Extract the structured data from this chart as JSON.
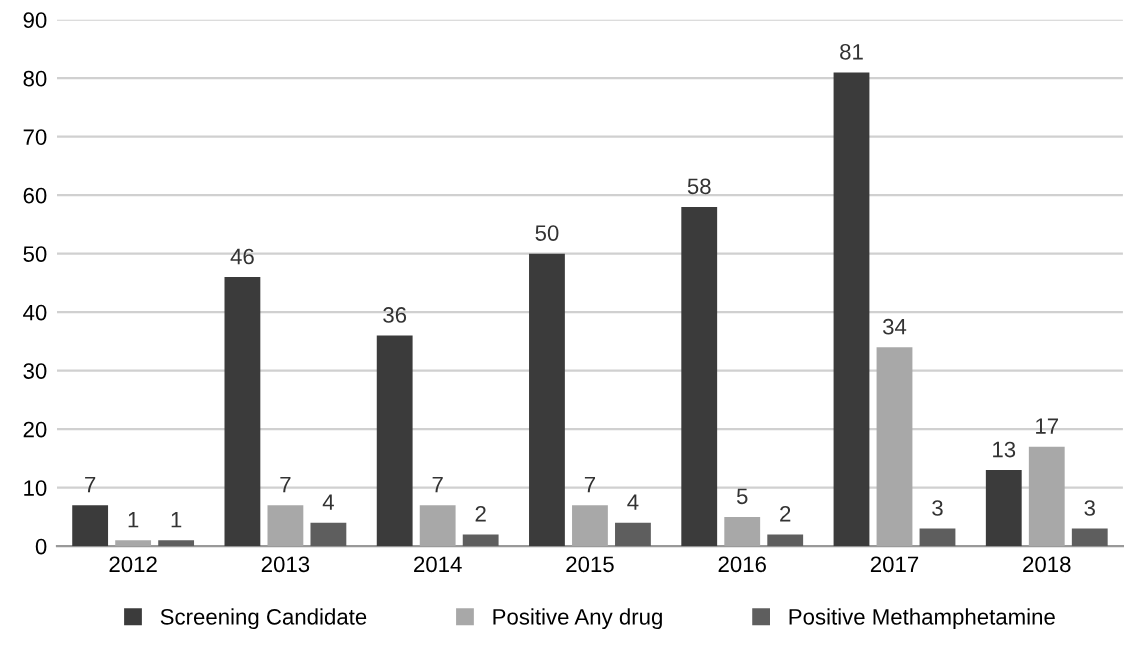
{
  "chart_data": {
    "type": "bar",
    "categories": [
      "2012",
      "2013",
      "2014",
      "2015",
      "2016",
      "2017",
      "2018"
    ],
    "series": [
      {
        "name": "Screening Candidate",
        "color": "#3b3b3b",
        "values": [
          7,
          46,
          36,
          50,
          58,
          81,
          13
        ]
      },
      {
        "name": "Positive Any drug",
        "color": "#a8a8a8",
        "values": [
          1,
          7,
          7,
          7,
          5,
          34,
          17
        ]
      },
      {
        "name": "Positive Methamphetamine",
        "color": "#5e5e5e",
        "values": [
          1,
          4,
          2,
          4,
          2,
          3,
          3
        ]
      }
    ],
    "ylim": [
      0,
      90
    ],
    "yticks": [
      0,
      10,
      20,
      30,
      40,
      50,
      60,
      70,
      80,
      90
    ],
    "grid": "y",
    "legend": "bottom",
    "data_labels": true
  }
}
